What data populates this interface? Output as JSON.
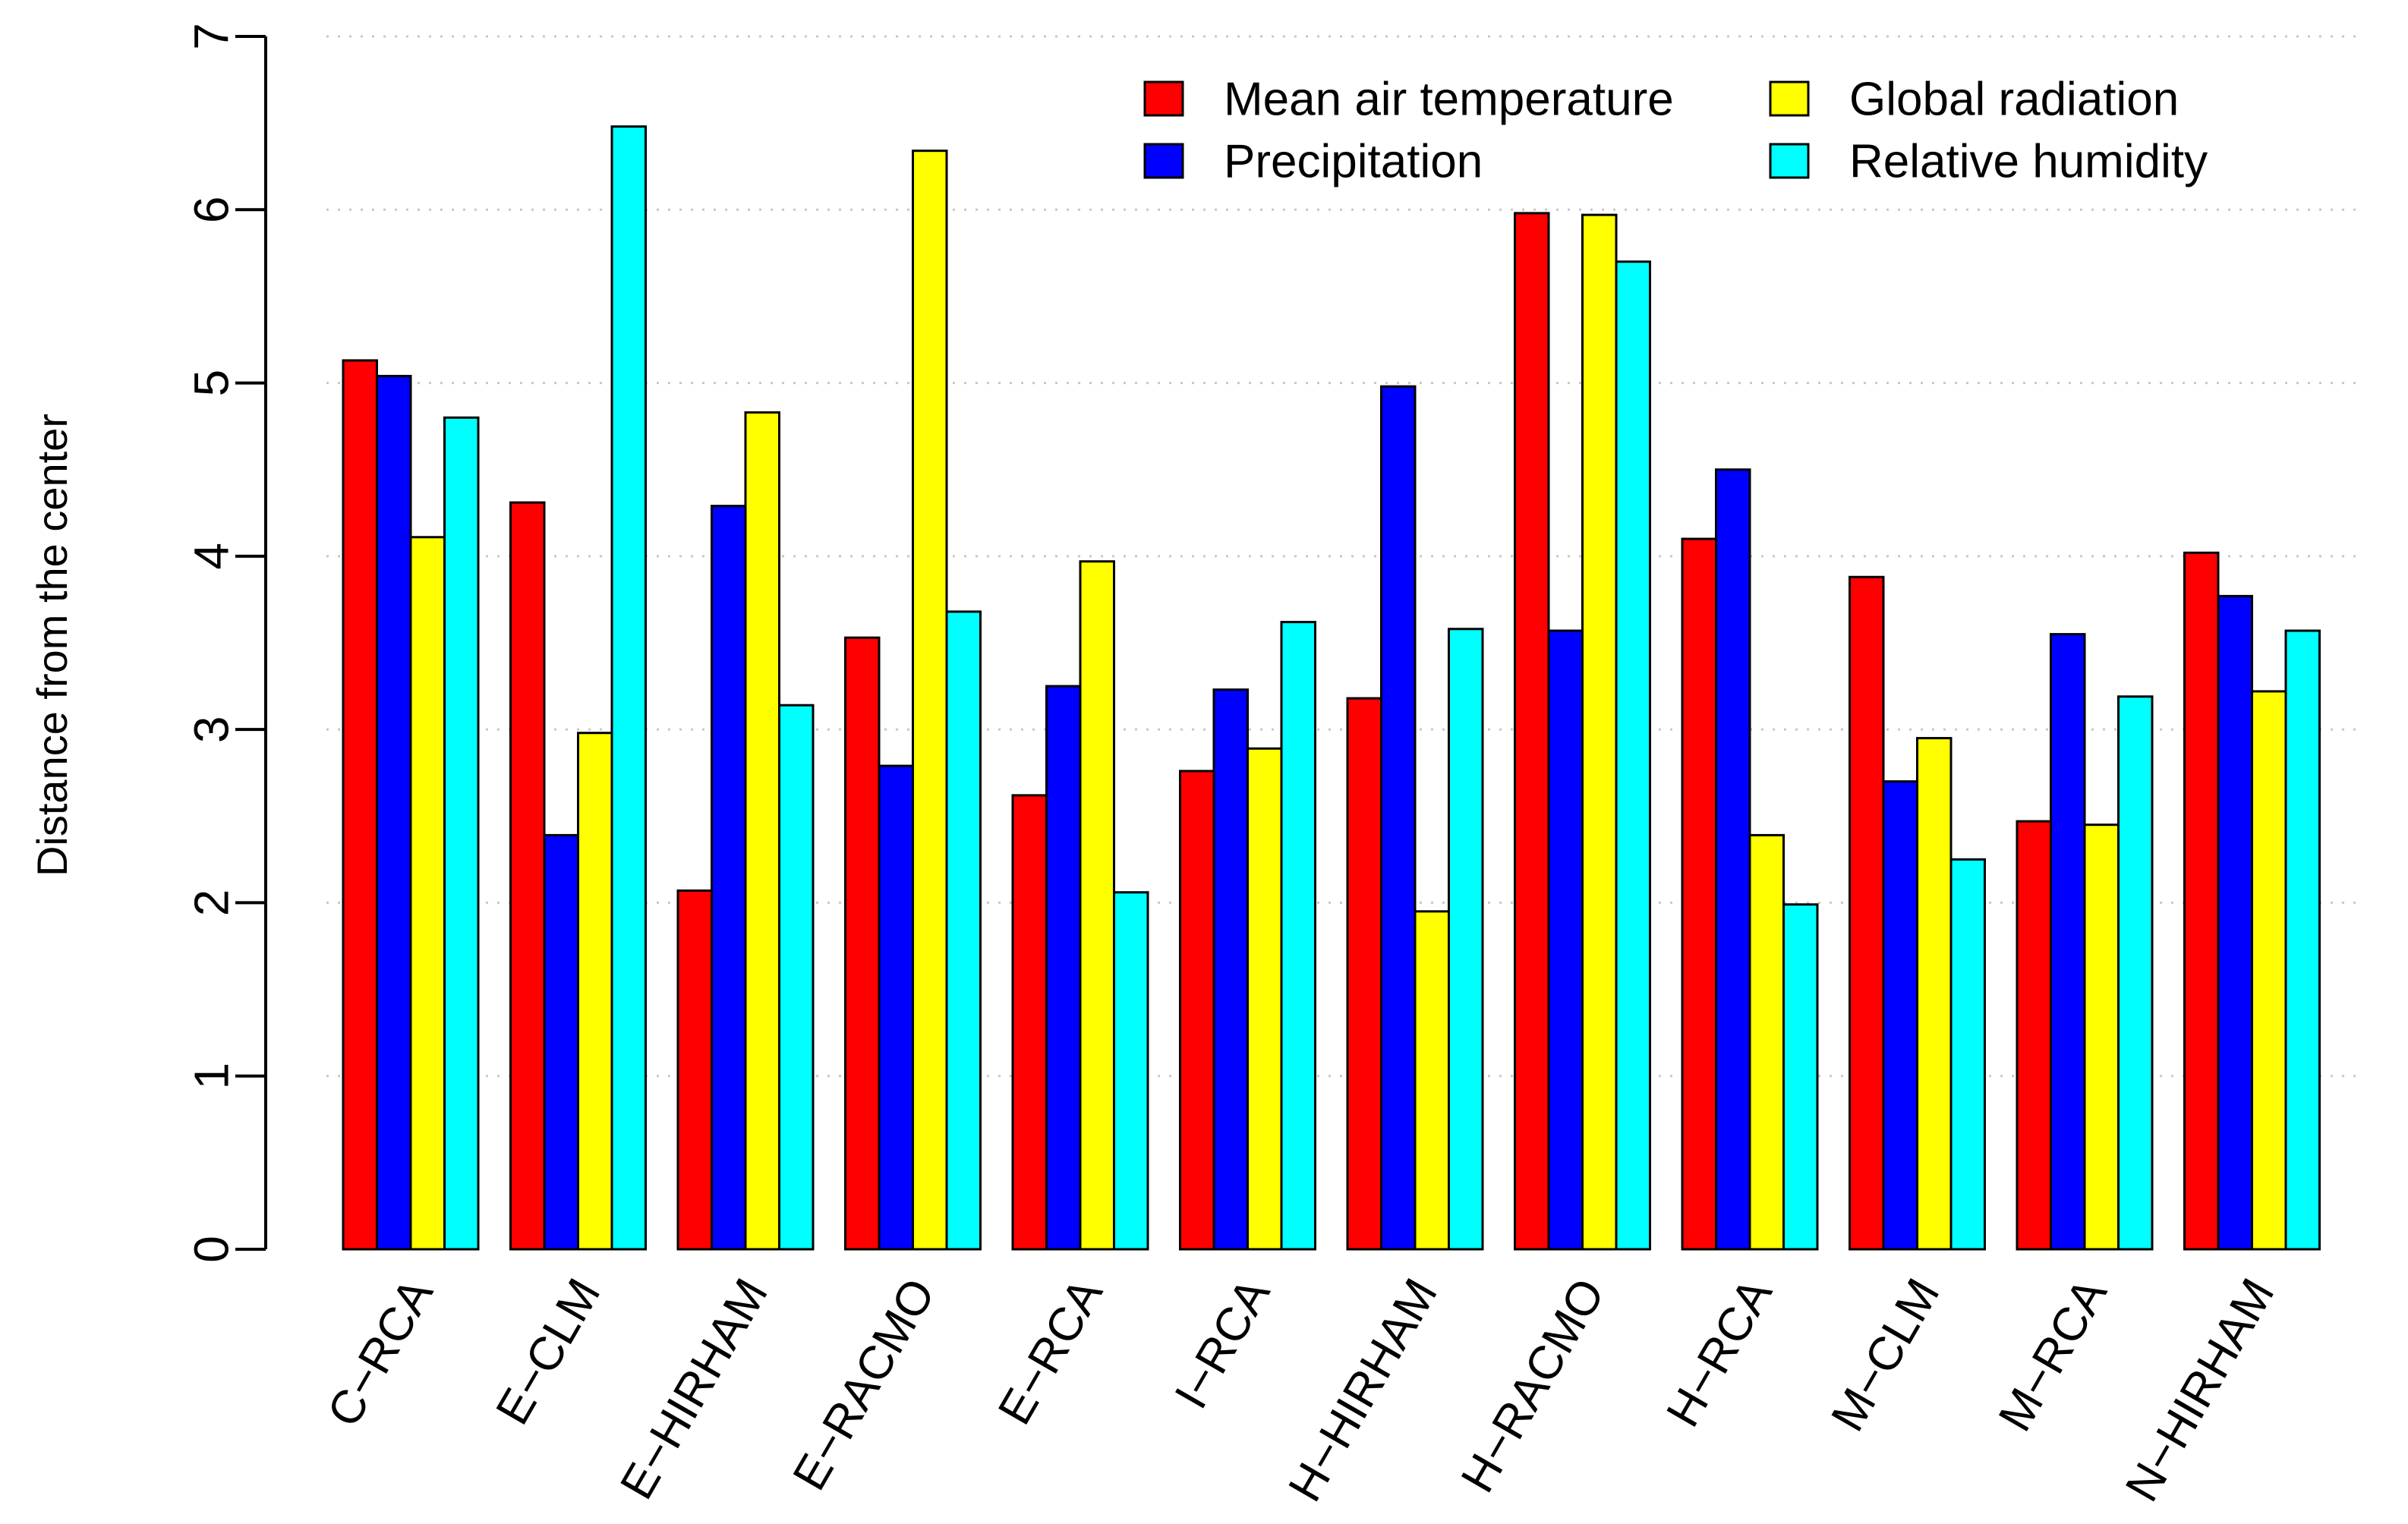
{
  "chart_data": {
    "type": "bar",
    "title": "",
    "xlabel": "",
    "ylabel": "Distance from the center",
    "ylim": [
      0,
      7
    ],
    "yticks": [
      0,
      1,
      2,
      3,
      4,
      5,
      6,
      7
    ],
    "grid": "horizontal dotted",
    "legend_position": "top-right",
    "categories": [
      "C−RCA",
      "E−CLM",
      "E−HIRHAM",
      "E−RACMO",
      "E−RCA",
      "I−RCA",
      "H−HIRHAM",
      "H−RACMO",
      "H−RCA",
      "M−CLM",
      "M−RCA",
      "N−HIRHAM"
    ],
    "series": [
      {
        "name": "Mean air temperature",
        "color": "#ff0000",
        "values": [
          5.13,
          4.31,
          2.07,
          3.53,
          2.62,
          2.76,
          3.18,
          5.98,
          4.1,
          3.88,
          2.47,
          4.02
        ]
      },
      {
        "name": "Precipitation",
        "color": "#0000ff",
        "values": [
          5.04,
          2.39,
          4.29,
          2.79,
          3.25,
          3.23,
          4.98,
          3.57,
          4.5,
          2.7,
          3.55,
          3.77
        ]
      },
      {
        "name": "Global radiation",
        "color": "#ffff00",
        "values": [
          4.11,
          2.98,
          4.83,
          6.34,
          3.97,
          2.89,
          1.95,
          5.97,
          2.39,
          2.95,
          2.45,
          3.22
        ]
      },
      {
        "name": "Relative humidity",
        "color": "#00ffff",
        "values": [
          4.8,
          6.48,
          3.14,
          3.68,
          2.06,
          3.62,
          3.58,
          5.7,
          1.99,
          2.25,
          3.19,
          3.57
        ]
      }
    ]
  }
}
